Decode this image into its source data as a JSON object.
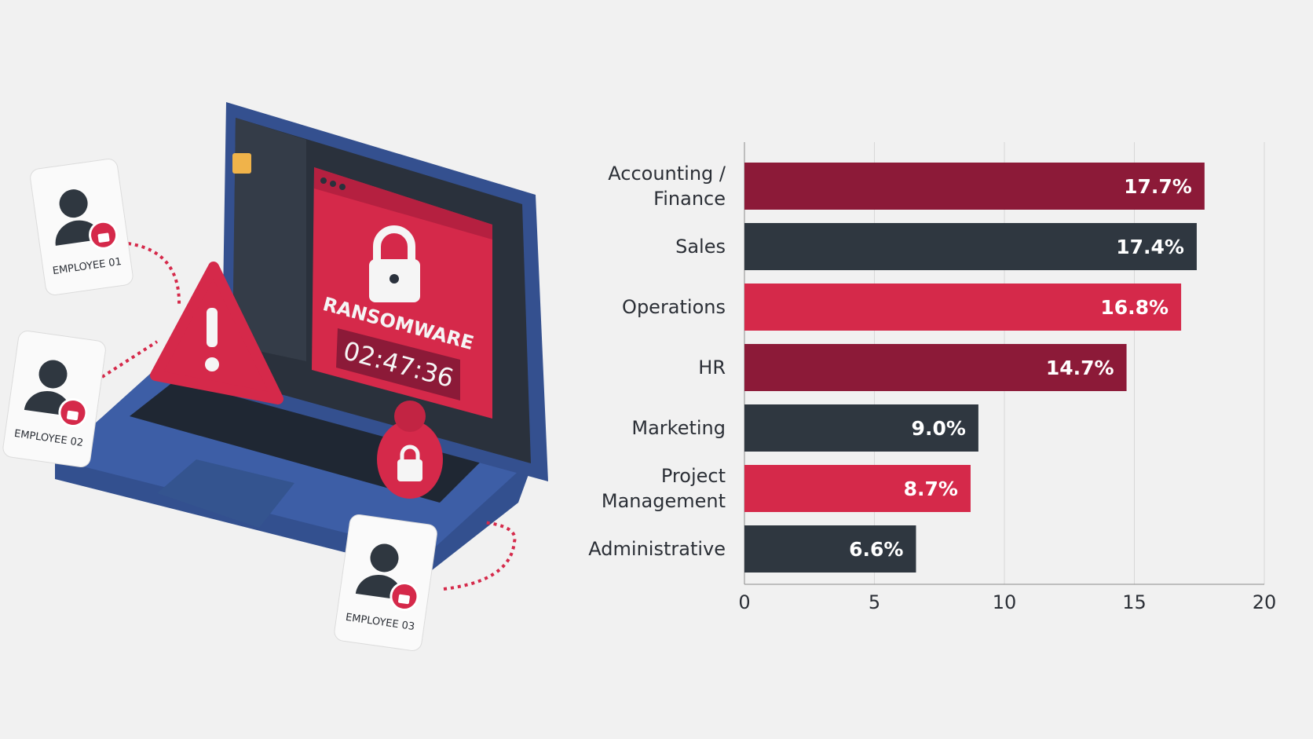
{
  "illustration": {
    "screen_title": "RANSOMWARE",
    "timer": "02:47:36",
    "employees": [
      "EMPLOYEE 01",
      "EMPLOYEE 02",
      "EMPLOYEE 03"
    ]
  },
  "chart_data": {
    "type": "hbar",
    "categories": [
      "Accounting / Finance",
      "Sales",
      "Operations",
      "HR",
      "Marketing",
      "Project Management",
      "Administrative"
    ],
    "values": [
      17.7,
      17.4,
      16.8,
      14.7,
      9.0,
      8.7,
      6.6
    ],
    "value_labels": [
      "17.7%",
      "17.4%",
      "16.8%",
      "14.7%",
      "9.0%",
      "8.7%",
      "6.6%"
    ],
    "colors": [
      "#8c1a38",
      "#2f3740",
      "#d5294a",
      "#8c1a38",
      "#2f3740",
      "#d5294a",
      "#2f3740"
    ],
    "xlim": [
      0,
      20
    ],
    "xticks": [
      0,
      5,
      10,
      15,
      20
    ],
    "grid": true
  }
}
